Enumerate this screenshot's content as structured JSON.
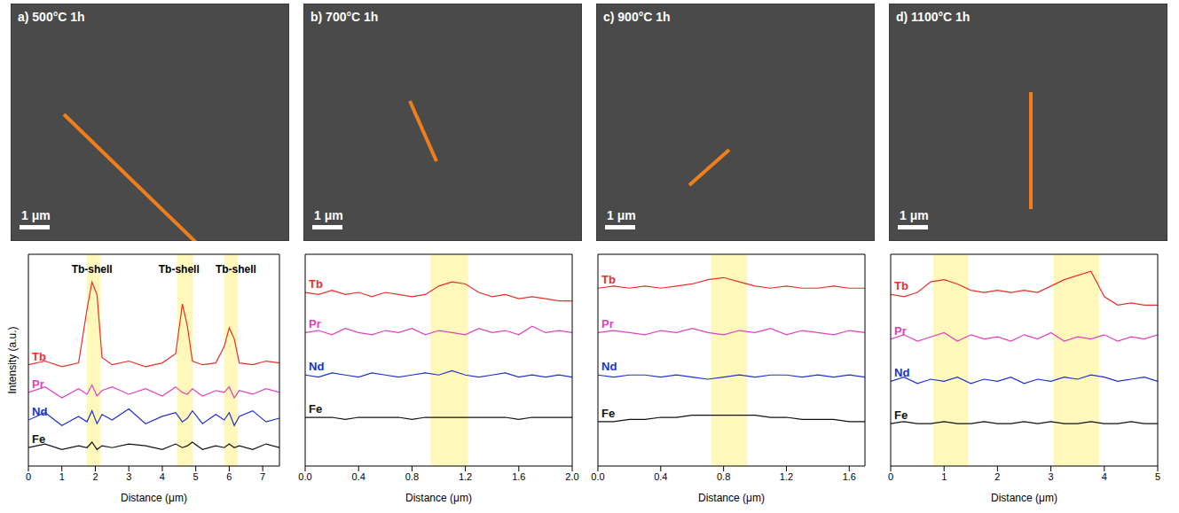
{
  "chart_data": [
    {
      "type": "line",
      "image_title": "a) 500°C 1h",
      "scale_bar": "1 μm",
      "x_label": "Distance (μm)",
      "y_label": "Intensity (a.u.)",
      "tick_labels": "x",
      "xlim": [
        0,
        7.5
      ],
      "xticks": [
        0,
        1,
        2,
        3,
        4,
        5,
        6,
        7
      ],
      "ylim": [
        0,
        11.5
      ],
      "highlight_ranges": [
        [
          1.75,
          2.15
        ],
        [
          4.45,
          4.9
        ],
        [
          5.85,
          6.25
        ]
      ],
      "annotations": [
        {
          "text": "Tb-shell",
          "x": 1.9,
          "y": 10.7
        },
        {
          "text": "Tb-shell",
          "x": 4.5,
          "y": 10.7
        },
        {
          "text": "Tb-shell",
          "x": 6.2,
          "y": 10.7
        }
      ],
      "x": [
        0,
        0.5,
        1,
        1.5,
        1.75,
        1.9,
        2.05,
        2.2,
        2.5,
        3,
        3.5,
        4,
        4.4,
        4.6,
        4.75,
        4.9,
        5.2,
        5.6,
        5.85,
        6.0,
        6.15,
        6.3,
        6.7,
        7.1,
        7.5
      ],
      "series": [
        {
          "name": "Tb",
          "color": "#e8302a",
          "values": [
            5.5,
            5.7,
            5.4,
            5.6,
            8.5,
            10.0,
            9.3,
            5.9,
            5.5,
            5.7,
            5.4,
            5.6,
            6.1,
            8.8,
            7.6,
            5.7,
            5.5,
            5.6,
            6.5,
            7.5,
            6.9,
            5.6,
            5.5,
            5.7,
            5.6
          ]
        },
        {
          "name": "Pr",
          "color": "#e040c0",
          "values": [
            4.0,
            4.3,
            3.7,
            4.2,
            3.9,
            4.4,
            3.8,
            4.1,
            4.3,
            3.9,
            4.2,
            3.8,
            4.3,
            4.0,
            3.9,
            4.2,
            3.8,
            4.1,
            4.0,
            4.3,
            3.7,
            4.1,
            3.9,
            4.2,
            4.0
          ]
        },
        {
          "name": "Nd",
          "color": "#2030d0",
          "values": [
            2.5,
            2.9,
            2.2,
            2.7,
            2.4,
            3.0,
            2.3,
            2.8,
            2.5,
            3.1,
            2.3,
            2.7,
            2.9,
            2.4,
            2.6,
            3.0,
            2.3,
            2.8,
            2.5,
            2.9,
            2.2,
            2.7,
            3.0,
            2.4,
            2.6
          ]
        },
        {
          "name": "Fe",
          "color": "#111111",
          "values": [
            1.0,
            1.2,
            0.9,
            1.1,
            1.0,
            1.3,
            0.9,
            1.1,
            1.0,
            1.2,
            1.1,
            0.9,
            1.2,
            1.0,
            1.1,
            1.3,
            0.9,
            1.1,
            1.0,
            1.2,
            1.0,
            1.1,
            0.9,
            1.2,
            1.0
          ]
        }
      ]
    },
    {
      "type": "line",
      "image_title": "b) 700°C 1h",
      "scale_bar": "1 μm",
      "x_label": "Distance (μm)",
      "tick_labels": "x",
      "xlim": [
        0,
        2
      ],
      "xticks": [
        {
          "value": 0,
          "label": "0.0"
        },
        0.4,
        0.8,
        1.2,
        1.6,
        {
          "value": 2,
          "label": "2.0"
        }
      ],
      "ylim": [
        0,
        10
      ],
      "highlight_ranges": [
        [
          0.94,
          1.22
        ]
      ],
      "x": [
        0,
        0.1,
        0.2,
        0.3,
        0.4,
        0.5,
        0.6,
        0.7,
        0.8,
        0.9,
        1.0,
        1.1,
        1.2,
        1.3,
        1.4,
        1.5,
        1.6,
        1.7,
        1.8,
        1.9,
        2.0
      ],
      "series": [
        {
          "name": "Tb",
          "color": "#e8302a",
          "values": [
            8.2,
            8.1,
            8.3,
            8.1,
            8.2,
            8.0,
            8.2,
            8.1,
            8.0,
            8.1,
            8.5,
            8.7,
            8.6,
            8.2,
            8.0,
            8.1,
            7.9,
            8.0,
            7.9,
            7.8,
            7.8
          ]
        },
        {
          "name": "Pr",
          "color": "#e040c0",
          "values": [
            6.3,
            6.4,
            6.2,
            6.5,
            6.3,
            6.2,
            6.4,
            6.3,
            6.5,
            6.2,
            6.4,
            6.3,
            6.2,
            6.5,
            6.3,
            6.4,
            6.2,
            6.6,
            6.3,
            6.4,
            6.3
          ]
        },
        {
          "name": "Nd",
          "color": "#2030d0",
          "values": [
            4.3,
            4.2,
            4.4,
            4.3,
            4.2,
            4.4,
            4.3,
            4.2,
            4.3,
            4.4,
            4.3,
            4.5,
            4.3,
            4.2,
            4.3,
            4.4,
            4.2,
            4.3,
            4.2,
            4.3,
            4.2
          ]
        },
        {
          "name": "Fe",
          "color": "#111111",
          "values": [
            2.3,
            2.3,
            2.3,
            2.2,
            2.3,
            2.3,
            2.3,
            2.3,
            2.2,
            2.3,
            2.3,
            2.3,
            2.3,
            2.3,
            2.3,
            2.3,
            2.2,
            2.3,
            2.3,
            2.3,
            2.3
          ]
        }
      ]
    },
    {
      "type": "line",
      "image_title": "c) 900°C 1h",
      "scale_bar": "1 μm",
      "x_label": "Distance (μm)",
      "tick_labels": "x",
      "xlim": [
        0,
        1.7
      ],
      "xticks": [
        {
          "value": 0,
          "label": "0.0"
        },
        0.4,
        0.8,
        1.2,
        1.6
      ],
      "ylim": [
        0,
        10
      ],
      "highlight_ranges": [
        [
          0.72,
          0.95
        ]
      ],
      "x": [
        0,
        0.1,
        0.2,
        0.3,
        0.4,
        0.5,
        0.6,
        0.7,
        0.8,
        0.9,
        1.0,
        1.1,
        1.2,
        1.3,
        1.4,
        1.5,
        1.6,
        1.7
      ],
      "series": [
        {
          "name": "Tb",
          "color": "#e8302a",
          "values": [
            8.4,
            8.5,
            8.4,
            8.5,
            8.4,
            8.5,
            8.6,
            8.8,
            8.9,
            8.7,
            8.5,
            8.4,
            8.5,
            8.4,
            8.4,
            8.5,
            8.4,
            8.4
          ]
        },
        {
          "name": "Pr",
          "color": "#e040c0",
          "values": [
            6.3,
            6.4,
            6.3,
            6.2,
            6.4,
            6.3,
            6.5,
            6.3,
            6.2,
            6.4,
            6.3,
            6.5,
            6.2,
            6.4,
            6.3,
            6.2,
            6.4,
            6.3
          ]
        },
        {
          "name": "Nd",
          "color": "#2030d0",
          "values": [
            4.3,
            4.2,
            4.3,
            4.3,
            4.2,
            4.3,
            4.2,
            4.1,
            4.2,
            4.3,
            4.2,
            4.3,
            4.3,
            4.2,
            4.3,
            4.2,
            4.3,
            4.2
          ]
        },
        {
          "name": "Fe",
          "color": "#111111",
          "values": [
            2.1,
            2.1,
            2.2,
            2.2,
            2.3,
            2.3,
            2.4,
            2.4,
            2.4,
            2.4,
            2.4,
            2.3,
            2.3,
            2.2,
            2.2,
            2.2,
            2.1,
            2.1
          ]
        }
      ]
    },
    {
      "type": "line",
      "image_title": "d) 1100°C 1h",
      "scale_bar": "1 μm",
      "x_label": "Distance (μm)",
      "tick_labels": "x",
      "xlim": [
        0,
        5
      ],
      "xticks": [
        0,
        1,
        2,
        3,
        4,
        5
      ],
      "ylim": [
        0,
        10
      ],
      "highlight_ranges": [
        [
          0.8,
          1.45
        ],
        [
          3.05,
          3.9
        ]
      ],
      "x": [
        0,
        0.25,
        0.5,
        0.75,
        1.0,
        1.25,
        1.5,
        1.75,
        2.0,
        2.25,
        2.5,
        2.75,
        3.0,
        3.25,
        3.5,
        3.75,
        4.0,
        4.25,
        4.5,
        4.75,
        5.0
      ],
      "series": [
        {
          "name": "Tb",
          "color": "#e8302a",
          "values": [
            8.1,
            8.0,
            8.2,
            8.7,
            8.8,
            8.6,
            8.3,
            8.2,
            8.3,
            8.2,
            8.3,
            8.2,
            8.5,
            8.8,
            9.0,
            9.2,
            8.0,
            7.6,
            7.7,
            7.6,
            7.6
          ]
        },
        {
          "name": "Pr",
          "color": "#e040c0",
          "values": [
            6.0,
            6.2,
            5.9,
            6.1,
            6.3,
            5.9,
            6.2,
            6.0,
            6.1,
            5.9,
            6.2,
            6.0,
            6.3,
            5.9,
            6.1,
            6.0,
            6.2,
            5.9,
            6.1,
            6.0,
            6.2
          ]
        },
        {
          "name": "Nd",
          "color": "#2030d0",
          "values": [
            4.0,
            4.2,
            3.9,
            4.1,
            4.0,
            4.2,
            3.9,
            4.1,
            4.0,
            4.2,
            3.9,
            4.1,
            4.0,
            4.2,
            4.1,
            4.3,
            4.2,
            4.0,
            4.1,
            4.2,
            4.0
          ]
        },
        {
          "name": "Fe",
          "color": "#111111",
          "values": [
            2.0,
            2.1,
            2.0,
            2.0,
            2.1,
            2.0,
            2.0,
            2.1,
            2.0,
            2.0,
            2.1,
            2.0,
            2.1,
            2.0,
            2.0,
            2.1,
            2.0,
            2.0,
            2.1,
            2.0,
            2.0
          ]
        }
      ]
    }
  ]
}
